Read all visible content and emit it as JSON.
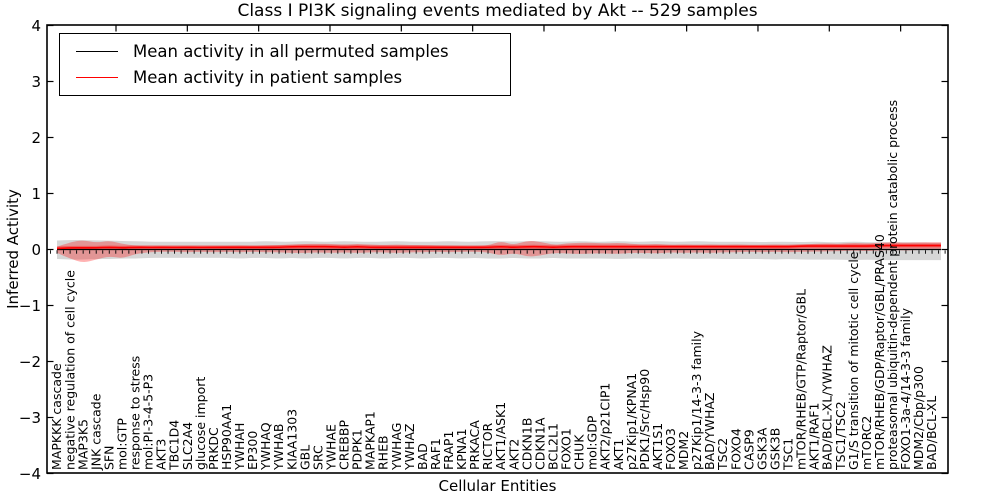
{
  "chart_data": {
    "type": "line",
    "title": "Class I PI3K signaling events mediated by Akt -- 529 samples",
    "xlabel": "Cellular Entities",
    "ylabel": "Inferred Activity",
    "ylim": [
      -4,
      4
    ],
    "y_ticks": [
      4,
      3,
      2,
      1,
      0,
      -1,
      -2,
      -3,
      -4
    ],
    "grid": false,
    "legend_position": "upper-left",
    "colors": {
      "background": "#ffffff",
      "frame": "#000000",
      "permuted_line": "#000000",
      "patient_line": "#ff0000",
      "permuted_band": "rgba(0,0,0,0.16)",
      "patient_band": "rgba(255,0,0,0.30)",
      "patient_band_inner": "rgba(255,0,0,0.35)"
    },
    "categories": [
      "MAPKKK cascade",
      "negative regulation of cell cycle",
      "MAP3K5",
      "JNK cascade",
      "SFN",
      "mol:GTP",
      "response to stress",
      "mol:PI-3-4-5-P3",
      "AKT3",
      "TBC1D4",
      "SLC2A4",
      "glucose import",
      "PRKDC",
      "HSP90AA1",
      "YWHAH",
      "EP300",
      "YWHAQ",
      "YWHAB",
      "KIAA1303",
      "GBL",
      "SRC",
      "YWHAE",
      "CREBBP",
      "PDPK1",
      "MAPKAP1",
      "RHEB",
      "YWHAG",
      "YWHAZ",
      "BAD",
      "RAF1",
      "FRAP1",
      "KPNA1",
      "PRKACA",
      "RICTOR",
      "AKT1/ASK1",
      "AKT2",
      "CDKN1B",
      "CDKN1A",
      "BCL2L1",
      "FOXO1",
      "CHUK",
      "mol:GDP",
      "AKT2/p21CIP1",
      "AKT1",
      "p27Kip1/KPNA1",
      "PDK1/Src/Hsp90",
      "AKT1S1",
      "FOXO3",
      "MDM2",
      "p27Kip1/14-3-3 family",
      "BAD/YWHAZ",
      "TSC2",
      "FOXO4",
      "CASP9",
      "GSK3A",
      "GSK3B",
      "TSC1",
      "mTOR/RHEB/GTP/Raptor/GBL",
      "AKT1/RAF1",
      "BAD/BCL-XL/YWHAZ",
      "TSC1/TSC2",
      "G1/S transition of mitotic cell cycle",
      "mTORC2",
      "mTOR/RHEB/GDP/Raptor/GBL/PRAS40",
      "proteasomal ubiquitin-dependent protein catabolic process",
      "FOXO1-3a-4/14-3-3 family",
      "MDM2/Cbp/p300",
      "BAD/BCL-XL"
    ],
    "series": [
      {
        "name": "Mean activity in all permuted samples",
        "color": "#000000",
        "values": [
          0,
          0,
          0,
          0,
          0,
          0,
          0,
          0,
          0,
          0,
          0,
          0,
          0,
          0,
          0,
          0,
          0,
          0,
          0,
          0,
          0,
          0,
          0,
          0,
          0,
          0,
          0,
          0,
          0,
          0,
          0,
          0,
          0,
          0,
          0,
          0,
          0,
          0,
          0,
          0,
          0,
          0,
          0,
          0,
          0,
          0,
          0,
          0,
          0,
          0,
          0,
          0,
          0,
          0,
          0,
          0,
          0,
          0,
          0,
          0,
          0,
          0,
          0,
          0,
          0,
          0,
          0,
          0
        ]
      },
      {
        "name": "Mean activity in patient samples",
        "color": "#ff0000",
        "values": [
          0.02,
          0.03,
          0.03,
          0.03,
          0.04,
          0.03,
          0.04,
          0.04,
          0.04,
          0.04,
          0.04,
          0.04,
          0.04,
          0.04,
          0.04,
          0.04,
          0.04,
          0.04,
          0.05,
          0.05,
          0.05,
          0.05,
          0.04,
          0.05,
          0.04,
          0.04,
          0.04,
          0.04,
          0.04,
          0.04,
          0.04,
          0.04,
          0.04,
          0.04,
          0.05,
          0.04,
          0.05,
          0.05,
          0.04,
          0.05,
          0.05,
          0.05,
          0.05,
          0.05,
          0.05,
          0.05,
          0.05,
          0.05,
          0.05,
          0.05,
          0.05,
          0.05,
          0.05,
          0.05,
          0.05,
          0.05,
          0.05,
          0.06,
          0.06,
          0.06,
          0.06,
          0.06,
          0.06,
          0.07,
          0.07,
          0.07,
          0.07,
          0.07
        ]
      }
    ],
    "bands": [
      {
        "name": "permuted-samples-range",
        "upper": [
          0.16,
          0.17,
          0.17,
          0.16,
          0.16,
          0.15,
          0.15,
          0.14,
          0.14,
          0.14,
          0.14,
          0.14,
          0.14,
          0.14,
          0.14,
          0.14,
          0.15,
          0.14,
          0.14,
          0.15,
          0.14,
          0.14,
          0.15,
          0.14,
          0.14,
          0.14,
          0.15,
          0.14,
          0.14,
          0.14,
          0.15,
          0.14,
          0.14,
          0.15,
          0.15,
          0.14,
          0.15,
          0.15,
          0.14,
          0.14,
          0.15,
          0.14,
          0.14,
          0.15,
          0.14,
          0.14,
          0.15,
          0.14,
          0.14,
          0.15,
          0.14,
          0.14,
          0.14,
          0.14,
          0.13,
          0.14,
          0.14,
          0.13,
          0.14,
          0.13,
          0.13,
          0.14,
          0.13,
          0.13,
          0.13,
          0.13,
          0.13,
          0.12
        ],
        "lower": [
          -0.17,
          -0.18,
          -0.18,
          -0.17,
          -0.17,
          -0.16,
          -0.16,
          -0.15,
          -0.15,
          -0.15,
          -0.15,
          -0.15,
          -0.15,
          -0.15,
          -0.16,
          -0.15,
          -0.15,
          -0.16,
          -0.15,
          -0.16,
          -0.15,
          -0.15,
          -0.16,
          -0.15,
          -0.15,
          -0.16,
          -0.15,
          -0.15,
          -0.16,
          -0.15,
          -0.15,
          -0.16,
          -0.15,
          -0.16,
          -0.16,
          -0.15,
          -0.16,
          -0.16,
          -0.15,
          -0.16,
          -0.16,
          -0.16,
          -0.16,
          -0.17,
          -0.16,
          -0.16,
          -0.17,
          -0.16,
          -0.16,
          -0.17,
          -0.16,
          -0.17,
          -0.17,
          -0.17,
          -0.17,
          -0.18,
          -0.17,
          -0.18,
          -0.18,
          -0.18,
          -0.18,
          -0.19,
          -0.18,
          -0.19,
          -0.19,
          -0.19,
          -0.19,
          -0.19
        ]
      },
      {
        "name": "patient-samples-range",
        "upper": [
          0.05,
          0.13,
          0.17,
          0.12,
          0.16,
          0.1,
          0.07,
          0.05,
          0.06,
          0.05,
          0.06,
          0.05,
          0.06,
          0.06,
          0.07,
          0.06,
          0.07,
          0.08,
          0.09,
          0.1,
          0.1,
          0.1,
          0.09,
          0.1,
          0.09,
          0.08,
          0.09,
          0.08,
          0.08,
          0.07,
          0.07,
          0.06,
          0.06,
          0.07,
          0.15,
          0.08,
          0.16,
          0.14,
          0.08,
          0.11,
          0.12,
          0.12,
          0.11,
          0.12,
          0.1,
          0.09,
          0.1,
          0.08,
          0.09,
          0.08,
          0.09,
          0.08,
          0.09,
          0.08,
          0.08,
          0.09,
          0.08,
          0.09,
          0.1,
          0.11,
          0.1,
          0.12,
          0.11,
          0.12,
          0.13,
          0.12,
          0.13,
          0.13
        ],
        "lower": [
          -0.06,
          -0.16,
          -0.24,
          -0.18,
          -0.12,
          -0.16,
          -0.08,
          -0.05,
          -0.04,
          -0.04,
          -0.05,
          -0.04,
          -0.05,
          -0.04,
          -0.05,
          -0.04,
          -0.05,
          -0.05,
          -0.06,
          -0.06,
          -0.05,
          -0.06,
          -0.05,
          -0.06,
          -0.05,
          -0.05,
          -0.06,
          -0.05,
          -0.05,
          -0.04,
          -0.05,
          -0.04,
          -0.04,
          -0.05,
          -0.11,
          -0.06,
          -0.13,
          -0.11,
          -0.06,
          -0.07,
          -0.08,
          -0.07,
          -0.07,
          -0.08,
          -0.06,
          -0.06,
          -0.07,
          -0.05,
          -0.06,
          -0.05,
          -0.06,
          -0.05,
          -0.05,
          -0.04,
          -0.05,
          -0.04,
          -0.05,
          -0.04,
          -0.04,
          -0.03,
          -0.03,
          -0.02,
          -0.03,
          -0.02,
          -0.01,
          -0.02,
          -0.01,
          0.0
        ]
      }
    ]
  }
}
